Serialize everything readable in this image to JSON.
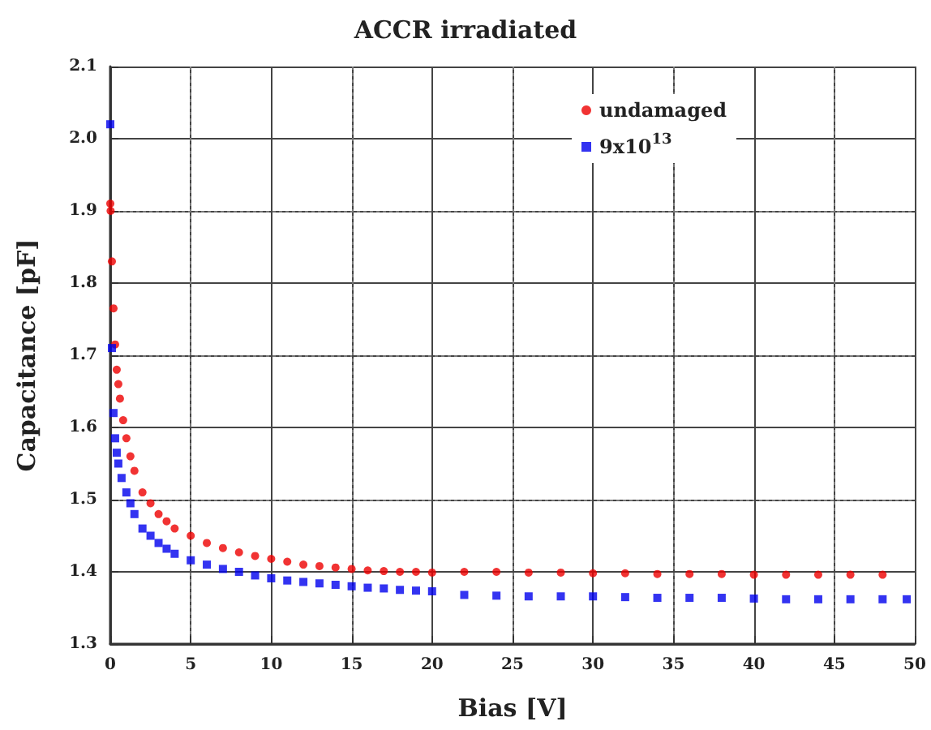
{
  "chart_data": {
    "type": "scatter",
    "title": "ACCR irradiated",
    "xlabel": "Bias [V]",
    "ylabel": "Capacitance [pF]",
    "xlim": [
      0,
      50
    ],
    "xticks": [
      0,
      5,
      10,
      15,
      20,
      25,
      30,
      35,
      40,
      45,
      50
    ],
    "ylim": [
      1.3,
      2.1
    ],
    "yticks": [
      1.3,
      1.4,
      1.5,
      1.6,
      1.7,
      1.8,
      1.9,
      {
        "value": 2,
        "label": "2.0"
      },
      2.1
    ],
    "grid": true,
    "legend": "top right",
    "series": [
      {
        "name": "undamaged",
        "color": "#ee0000",
        "marker": "circle",
        "x": [
          0,
          0.02,
          0.1,
          0.2,
          0.3,
          0.4,
          0.5,
          0.6,
          0.8,
          1,
          1.25,
          1.5,
          2,
          2.5,
          3,
          3.5,
          4,
          5,
          6,
          7,
          8,
          9,
          10,
          11,
          12,
          13,
          14,
          15,
          16,
          17,
          18,
          19,
          20,
          22,
          24,
          26,
          28,
          30,
          32,
          34,
          36,
          38,
          40,
          42,
          44,
          46,
          48
        ],
        "values": [
          1.91,
          1.9,
          1.83,
          1.765,
          1.715,
          1.68,
          1.66,
          1.64,
          1.61,
          1.585,
          1.56,
          1.54,
          1.51,
          1.495,
          1.48,
          1.47,
          1.46,
          1.45,
          1.44,
          1.433,
          1.427,
          1.422,
          1.418,
          1.414,
          1.41,
          1.408,
          1.406,
          1.404,
          1.402,
          1.401,
          1.4,
          1.4,
          1.399,
          1.4,
          1.4,
          1.399,
          1.399,
          1.398,
          1.398,
          1.397,
          1.397,
          1.397,
          1.396,
          1.396,
          1.396,
          1.396,
          1.396
        ]
      },
      {
        "name": "9x10$^{13}$",
        "color": "#0000ee",
        "marker": "square",
        "x": [
          0,
          0.1,
          0.2,
          0.3,
          0.4,
          0.5,
          0.7,
          1,
          1.25,
          1.5,
          2,
          2.5,
          3,
          3.5,
          4,
          5,
          6,
          7,
          8,
          9,
          10,
          11,
          12,
          13,
          14,
          15,
          16,
          17,
          18,
          19,
          20,
          22,
          24,
          26,
          28,
          30,
          32,
          34,
          36,
          38,
          40,
          42,
          44,
          46,
          48,
          49.5
        ],
        "values": [
          2.02,
          1.71,
          1.62,
          1.585,
          1.565,
          1.55,
          1.53,
          1.51,
          1.495,
          1.48,
          1.46,
          1.45,
          1.44,
          1.432,
          1.425,
          1.416,
          1.41,
          1.404,
          1.4,
          1.395,
          1.391,
          1.388,
          1.386,
          1.384,
          1.382,
          1.38,
          1.378,
          1.377,
          1.375,
          1.374,
          1.373,
          1.368,
          1.367,
          1.366,
          1.366,
          1.366,
          1.365,
          1.364,
          1.364,
          1.364,
          1.363,
          1.362,
          1.362,
          1.362,
          1.362,
          1.362
        ]
      }
    ]
  }
}
